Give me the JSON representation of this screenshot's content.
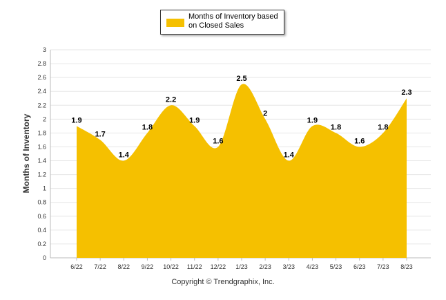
{
  "chart_data": {
    "type": "area",
    "categories": [
      "6/22",
      "7/22",
      "8/22",
      "9/22",
      "10/22",
      "11/22",
      "12/22",
      "1/23",
      "2/23",
      "3/23",
      "4/23",
      "5/23",
      "6/23",
      "7/23",
      "8/23"
    ],
    "series": [
      {
        "name": "Months of Inventory based on Closed Sales",
        "values": [
          1.9,
          1.7,
          1.4,
          1.8,
          2.2,
          1.9,
          1.6,
          2.5,
          2,
          1.4,
          1.9,
          1.8,
          1.6,
          1.8,
          2.3
        ],
        "color": "#f5c000"
      }
    ],
    "ylabel": "Months of Inventory",
    "xlabel": "",
    "ylim": [
      0,
      3
    ],
    "yticks": [
      0,
      0.2,
      0.4,
      0.6,
      0.8,
      1,
      1.2,
      1.4,
      1.6,
      1.8,
      2,
      2.2,
      2.4,
      2.6,
      2.8,
      3
    ],
    "grid": true,
    "legend_position": "top-center",
    "data_labels": true
  },
  "footer": {
    "copyright": "Copyright © Trendgraphix, Inc."
  },
  "colors": {
    "axis": "#bbbbbb",
    "grid": "#e6e6e6",
    "label": "#333333"
  }
}
